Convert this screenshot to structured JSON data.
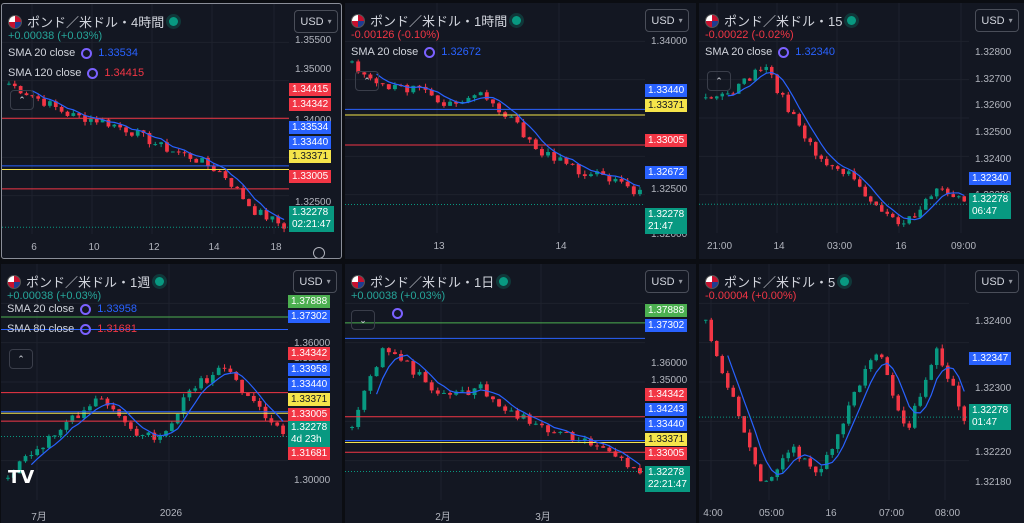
{
  "currency_label": "USD",
  "panels": [
    {
      "title": "ポンド／米ドル・4時間",
      "change": "+0.00038 (+0.03%)",
      "change_color": "#26a69a",
      "smas": [
        {
          "label": "SMA 20 close",
          "value": "1.33534",
          "color": "#2962ff"
        },
        {
          "label": "SMA 120 close",
          "value": "1.34415",
          "color": "#f23645"
        }
      ],
      "y_range": [
        1.3215,
        1.3575
      ],
      "y_ticks": [
        "1.35500",
        "1.35000",
        "1.34000",
        "1.33500",
        "1.32500"
      ],
      "x_ticks": [
        "6",
        "10",
        "12",
        "14",
        "18"
      ],
      "axis_tags": [
        {
          "text": "1.34415",
          "bg": "#f23645",
          "fg": "#ffffff"
        },
        {
          "text": "1.34342",
          "bg": "#f23645",
          "fg": "#ffffff"
        },
        {
          "text": "1.33534",
          "bg": "#2962ff",
          "fg": "#ffffff"
        },
        {
          "text": "1.33440",
          "bg": "#2962ff",
          "fg": "#ffffff"
        },
        {
          "text": "1.33371",
          "bg": "#f5e44a",
          "fg": "#131722"
        },
        {
          "text": "1.33005",
          "bg": "#f23645",
          "fg": "#ffffff"
        }
      ],
      "last_price": "1.32278",
      "countdown": "02:21:47",
      "lines": [
        {
          "price": 1.34342,
          "color": "#f23645"
        },
        {
          "price": 1.3344,
          "color": "#2962ff"
        },
        {
          "price": 1.33371,
          "color": "#f5e44a"
        },
        {
          "price": 1.33005,
          "color": "#f23645"
        }
      ]
    },
    {
      "title": "ポンド／米ドル・1時間",
      "change": "-0.00126 (-0.10%)",
      "change_color": "#f23645",
      "smas": [
        {
          "label": "SMA 20 close",
          "value": "1.32672",
          "color": "#2962ff"
        }
      ],
      "y_range": [
        1.3193,
        1.3425
      ],
      "y_ticks": [
        "1.34000",
        "1.32500",
        "1.32000"
      ],
      "x_ticks": [
        "13",
        "14"
      ],
      "axis_tags": [
        {
          "text": "1.33440",
          "bg": "#2962ff",
          "fg": "#ffffff"
        },
        {
          "text": "1.33371",
          "bg": "#f5e44a",
          "fg": "#131722"
        },
        {
          "text": "1.33005",
          "bg": "#f23645",
          "fg": "#ffffff"
        },
        {
          "text": "1.32672",
          "bg": "#2962ff",
          "fg": "#ffffff"
        }
      ],
      "last_price": "1.32278",
      "countdown": "21:47",
      "lines": [
        {
          "price": 1.3344,
          "color": "#2962ff"
        },
        {
          "price": 1.33371,
          "color": "#f5e44a"
        },
        {
          "price": 1.33005,
          "color": "#f23645"
        }
      ]
    },
    {
      "title": "ポンド／米ドル・15",
      "change": "-0.00022 (-0.02%)",
      "change_color": "#f23645",
      "smas": [
        {
          "label": "SMA 20 close",
          "value": "1.32340",
          "color": "#2962ff"
        }
      ],
      "y_range": [
        1.3216,
        1.3294
      ],
      "y_ticks": [
        "1.32800",
        "1.32700",
        "1.32600",
        "1.32500",
        "1.32400",
        "1.32200"
      ],
      "x_ticks": [
        "21:00",
        "14",
        "03:00",
        "16",
        "09:00"
      ],
      "axis_tags": [
        {
          "text": "1.32340",
          "bg": "#2962ff",
          "fg": "#ffffff"
        }
      ],
      "last_price": "1.32278",
      "countdown": "06:47",
      "lines": []
    },
    {
      "title": "ポンド／米ドル・1週",
      "change": "+0.00038 (+0.03%)",
      "change_color": "#26a69a",
      "smas": [
        {
          "label": "SMA 20 close",
          "value": "1.33958",
          "color": "#2962ff"
        },
        {
          "label": "SMA 80 close",
          "value": "1.31681",
          "color": "#f23645"
        }
      ],
      "y_range": [
        1.293,
        1.385
      ],
      "y_ticks": [
        "1.36000",
        "1.35000",
        "1.30000"
      ],
      "x_ticks": [
        "7月",
        "2026"
      ],
      "axis_tags": [
        {
          "text": "1.37888",
          "bg": "#4caf50",
          "fg": "#ffffff"
        },
        {
          "text": "1.37302",
          "bg": "#2962ff",
          "fg": "#ffffff"
        },
        {
          "text": "1.34342",
          "bg": "#f23645",
          "fg": "#ffffff"
        },
        {
          "text": "1.33958",
          "bg": "#2962ff",
          "fg": "#ffffff"
        },
        {
          "text": "1.33440",
          "bg": "#2962ff",
          "fg": "#ffffff"
        },
        {
          "text": "1.33371",
          "bg": "#f5e44a",
          "fg": "#131722"
        },
        {
          "text": "1.33005",
          "bg": "#f23645",
          "fg": "#ffffff"
        },
        {
          "text": "1.31681",
          "bg": "#f23645",
          "fg": "#ffffff"
        }
      ],
      "last_price": "1.32278",
      "countdown": "4d 23h",
      "lines": [
        {
          "price": 1.37888,
          "color": "#4caf50"
        },
        {
          "price": 1.37302,
          "color": "#2962ff"
        },
        {
          "price": 1.34342,
          "color": "#f23645"
        },
        {
          "price": 1.3344,
          "color": "#2962ff"
        },
        {
          "price": 1.33371,
          "color": "#f5e44a"
        },
        {
          "price": 1.33005,
          "color": "#f23645"
        }
      ]
    },
    {
      "title": "ポンド／米ドル・1日",
      "change": "+0.00038 (+0.03%)",
      "change_color": "#26a69a",
      "smas": [],
      "y_range": [
        1.312,
        1.386
      ],
      "y_ticks": [
        "1.36000",
        "1.35000"
      ],
      "x_ticks": [
        "2月",
        "3月"
      ],
      "axis_tags": [
        {
          "text": "1.37888",
          "bg": "#4caf50",
          "fg": "#ffffff"
        },
        {
          "text": "1.37302",
          "bg": "#2962ff",
          "fg": "#ffffff"
        },
        {
          "text": "1.34342",
          "bg": "#f23645",
          "fg": "#ffffff"
        },
        {
          "text": "1.34243",
          "bg": "#2962ff",
          "fg": "#ffffff"
        },
        {
          "text": "1.33440",
          "bg": "#2962ff",
          "fg": "#ffffff"
        },
        {
          "text": "1.33371",
          "bg": "#f5e44a",
          "fg": "#131722"
        },
        {
          "text": "1.33005",
          "bg": "#f23645",
          "fg": "#ffffff"
        }
      ],
      "last_price": "1.32278",
      "countdown": "22:21:47",
      "lines": [
        {
          "price": 1.37888,
          "color": "#4caf50"
        },
        {
          "price": 1.37302,
          "color": "#2962ff"
        },
        {
          "price": 1.34342,
          "color": "#f23645"
        },
        {
          "price": 1.3344,
          "color": "#2962ff"
        },
        {
          "price": 1.33371,
          "color": "#f5e44a"
        },
        {
          "price": 1.33005,
          "color": "#f23645"
        }
      ]
    },
    {
      "title": "ポンド／米ドル・5",
      "change": "-0.00004 (+0.00%)",
      "change_color": "#f23645",
      "smas": [],
      "y_range": [
        1.3213,
        1.3248
      ],
      "y_ticks": [
        "1.32400",
        "1.32300",
        "1.32220",
        "1.32180"
      ],
      "x_ticks": [
        "4:00",
        "05:00",
        "16",
        "07:00",
        "08:00"
      ],
      "axis_tags": [
        {
          "text": "1.32347",
          "bg": "#2962ff",
          "fg": "#ffffff"
        }
      ],
      "last_price": "1.32278",
      "countdown": "01:47",
      "lines": []
    }
  ]
}
